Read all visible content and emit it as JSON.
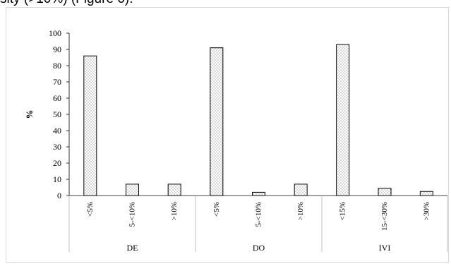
{
  "document": {
    "text_above": "sity (>10%) (Figure 6)."
  },
  "chart_data": {
    "type": "bar",
    "title": "",
    "xlabel": "",
    "ylabel": "%",
    "ylim": [
      0,
      100
    ],
    "yticks": [
      0,
      10,
      20,
      30,
      40,
      50,
      60,
      70,
      80,
      90,
      100
    ],
    "grid": false,
    "legend": "none",
    "bar_fill": "dotted",
    "bar_color": "#ffffff",
    "edge_color": "#000000",
    "groups": [
      {
        "name": "DE",
        "categories": [
          "<5%",
          "5-<10%",
          ">10%"
        ],
        "values": [
          86,
          7,
          7
        ]
      },
      {
        "name": "DO",
        "categories": [
          "<5%",
          "5-<10%",
          ">10%"
        ],
        "values": [
          91,
          2,
          7
        ]
      },
      {
        "name": "IVI",
        "categories": [
          "<15%",
          "15-<30%",
          ">30%"
        ],
        "values": [
          93,
          4.5,
          2.5
        ]
      }
    ]
  }
}
